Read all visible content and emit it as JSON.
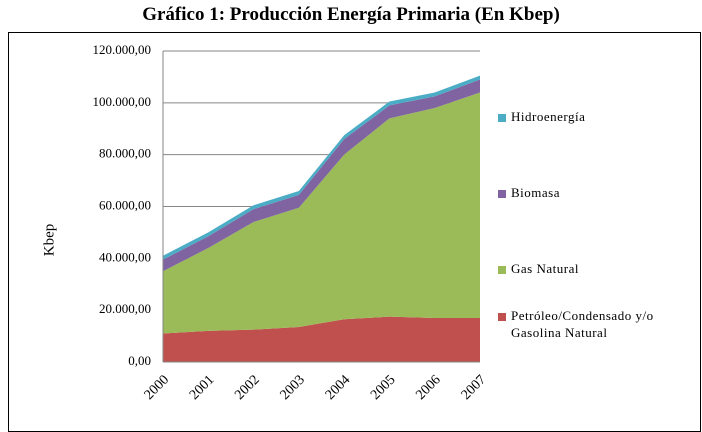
{
  "chart_data": {
    "type": "stacked-area",
    "title": "Gráfico 1: Producción Energía Primaria (En Kbep)",
    "y_label": "Kbep",
    "categories": [
      "2000",
      "2001",
      "2002",
      "2003",
      "2004",
      "2005",
      "2006",
      "2007"
    ],
    "series": [
      {
        "name": "Petróleo/Condensado y/o Gasolina Natural",
        "color": "#c0504d",
        "values": [
          11000,
          12000,
          12500,
          13500,
          16500,
          17500,
          17000,
          17000
        ]
      },
      {
        "name": "Gas Natural",
        "color": "#9bbb59",
        "values": [
          24000,
          32000,
          41500,
          46000,
          63500,
          76500,
          81000,
          87000
        ]
      },
      {
        "name": "Biomasa",
        "color": "#8064a2",
        "values": [
          4500,
          4500,
          5000,
          5000,
          6000,
          5000,
          4500,
          5000
        ]
      },
      {
        "name": "Hidroenergía",
        "color": "#4bacc6",
        "values": [
          1500,
          1500,
          1500,
          1500,
          1500,
          1500,
          1500,
          1500
        ]
      }
    ],
    "ylim": [
      0,
      120000
    ],
    "yticks": [
      {
        "value": 0,
        "label": "0,00"
      },
      {
        "value": 20000,
        "label": "20.000,00"
      },
      {
        "value": 40000,
        "label": "40.000,00"
      },
      {
        "value": 60000,
        "label": "60.000,00"
      },
      {
        "value": 80000,
        "label": "80.000,00"
      },
      {
        "value": 100000,
        "label": "100.000,00"
      },
      {
        "value": 120000,
        "label": "120.000,00"
      }
    ],
    "grid": true
  }
}
